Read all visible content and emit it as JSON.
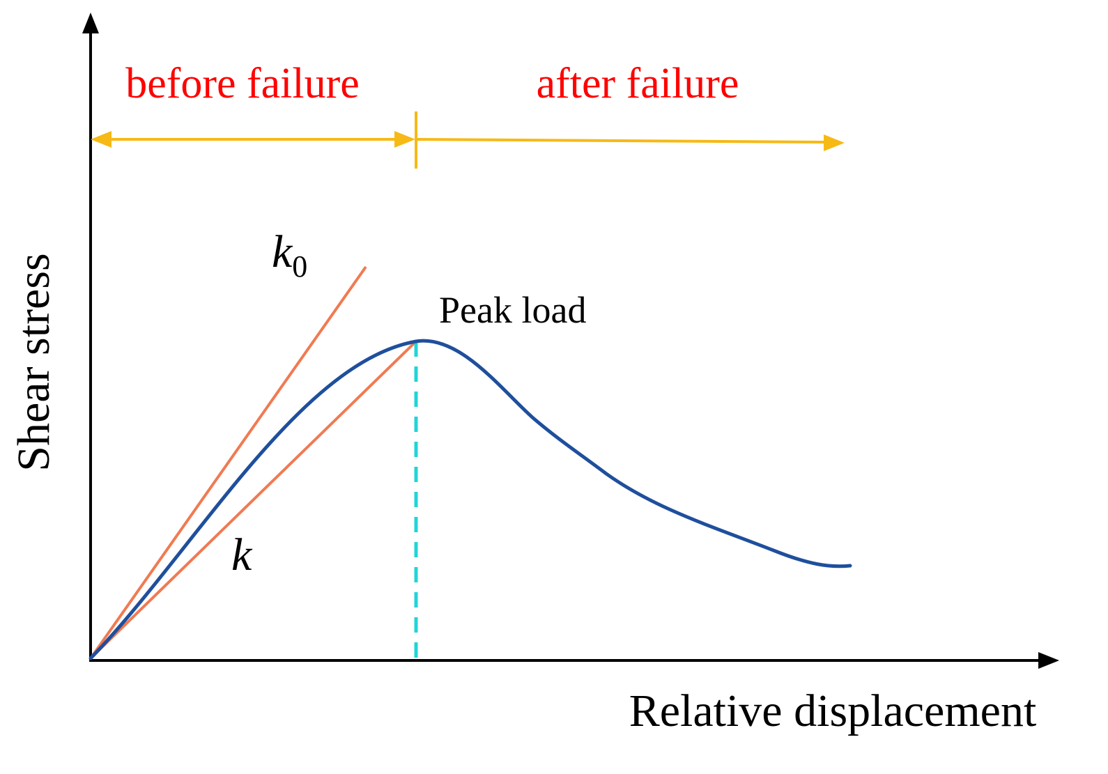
{
  "labels": {
    "y_axis": "Shear stress",
    "x_axis": "Relative displacement",
    "before": "before failure",
    "after": "after failure",
    "peak": "Peak load",
    "k0_base": "k",
    "k0_sub": "0",
    "k": "k"
  },
  "colors": {
    "axis": "#000000",
    "phase_label": "#ff0000",
    "phase_arrow": "#f6b915",
    "curve": "#1f4f9c",
    "stiffness_line": "#f07a52",
    "peak_marker": "#20d4d8"
  }
}
